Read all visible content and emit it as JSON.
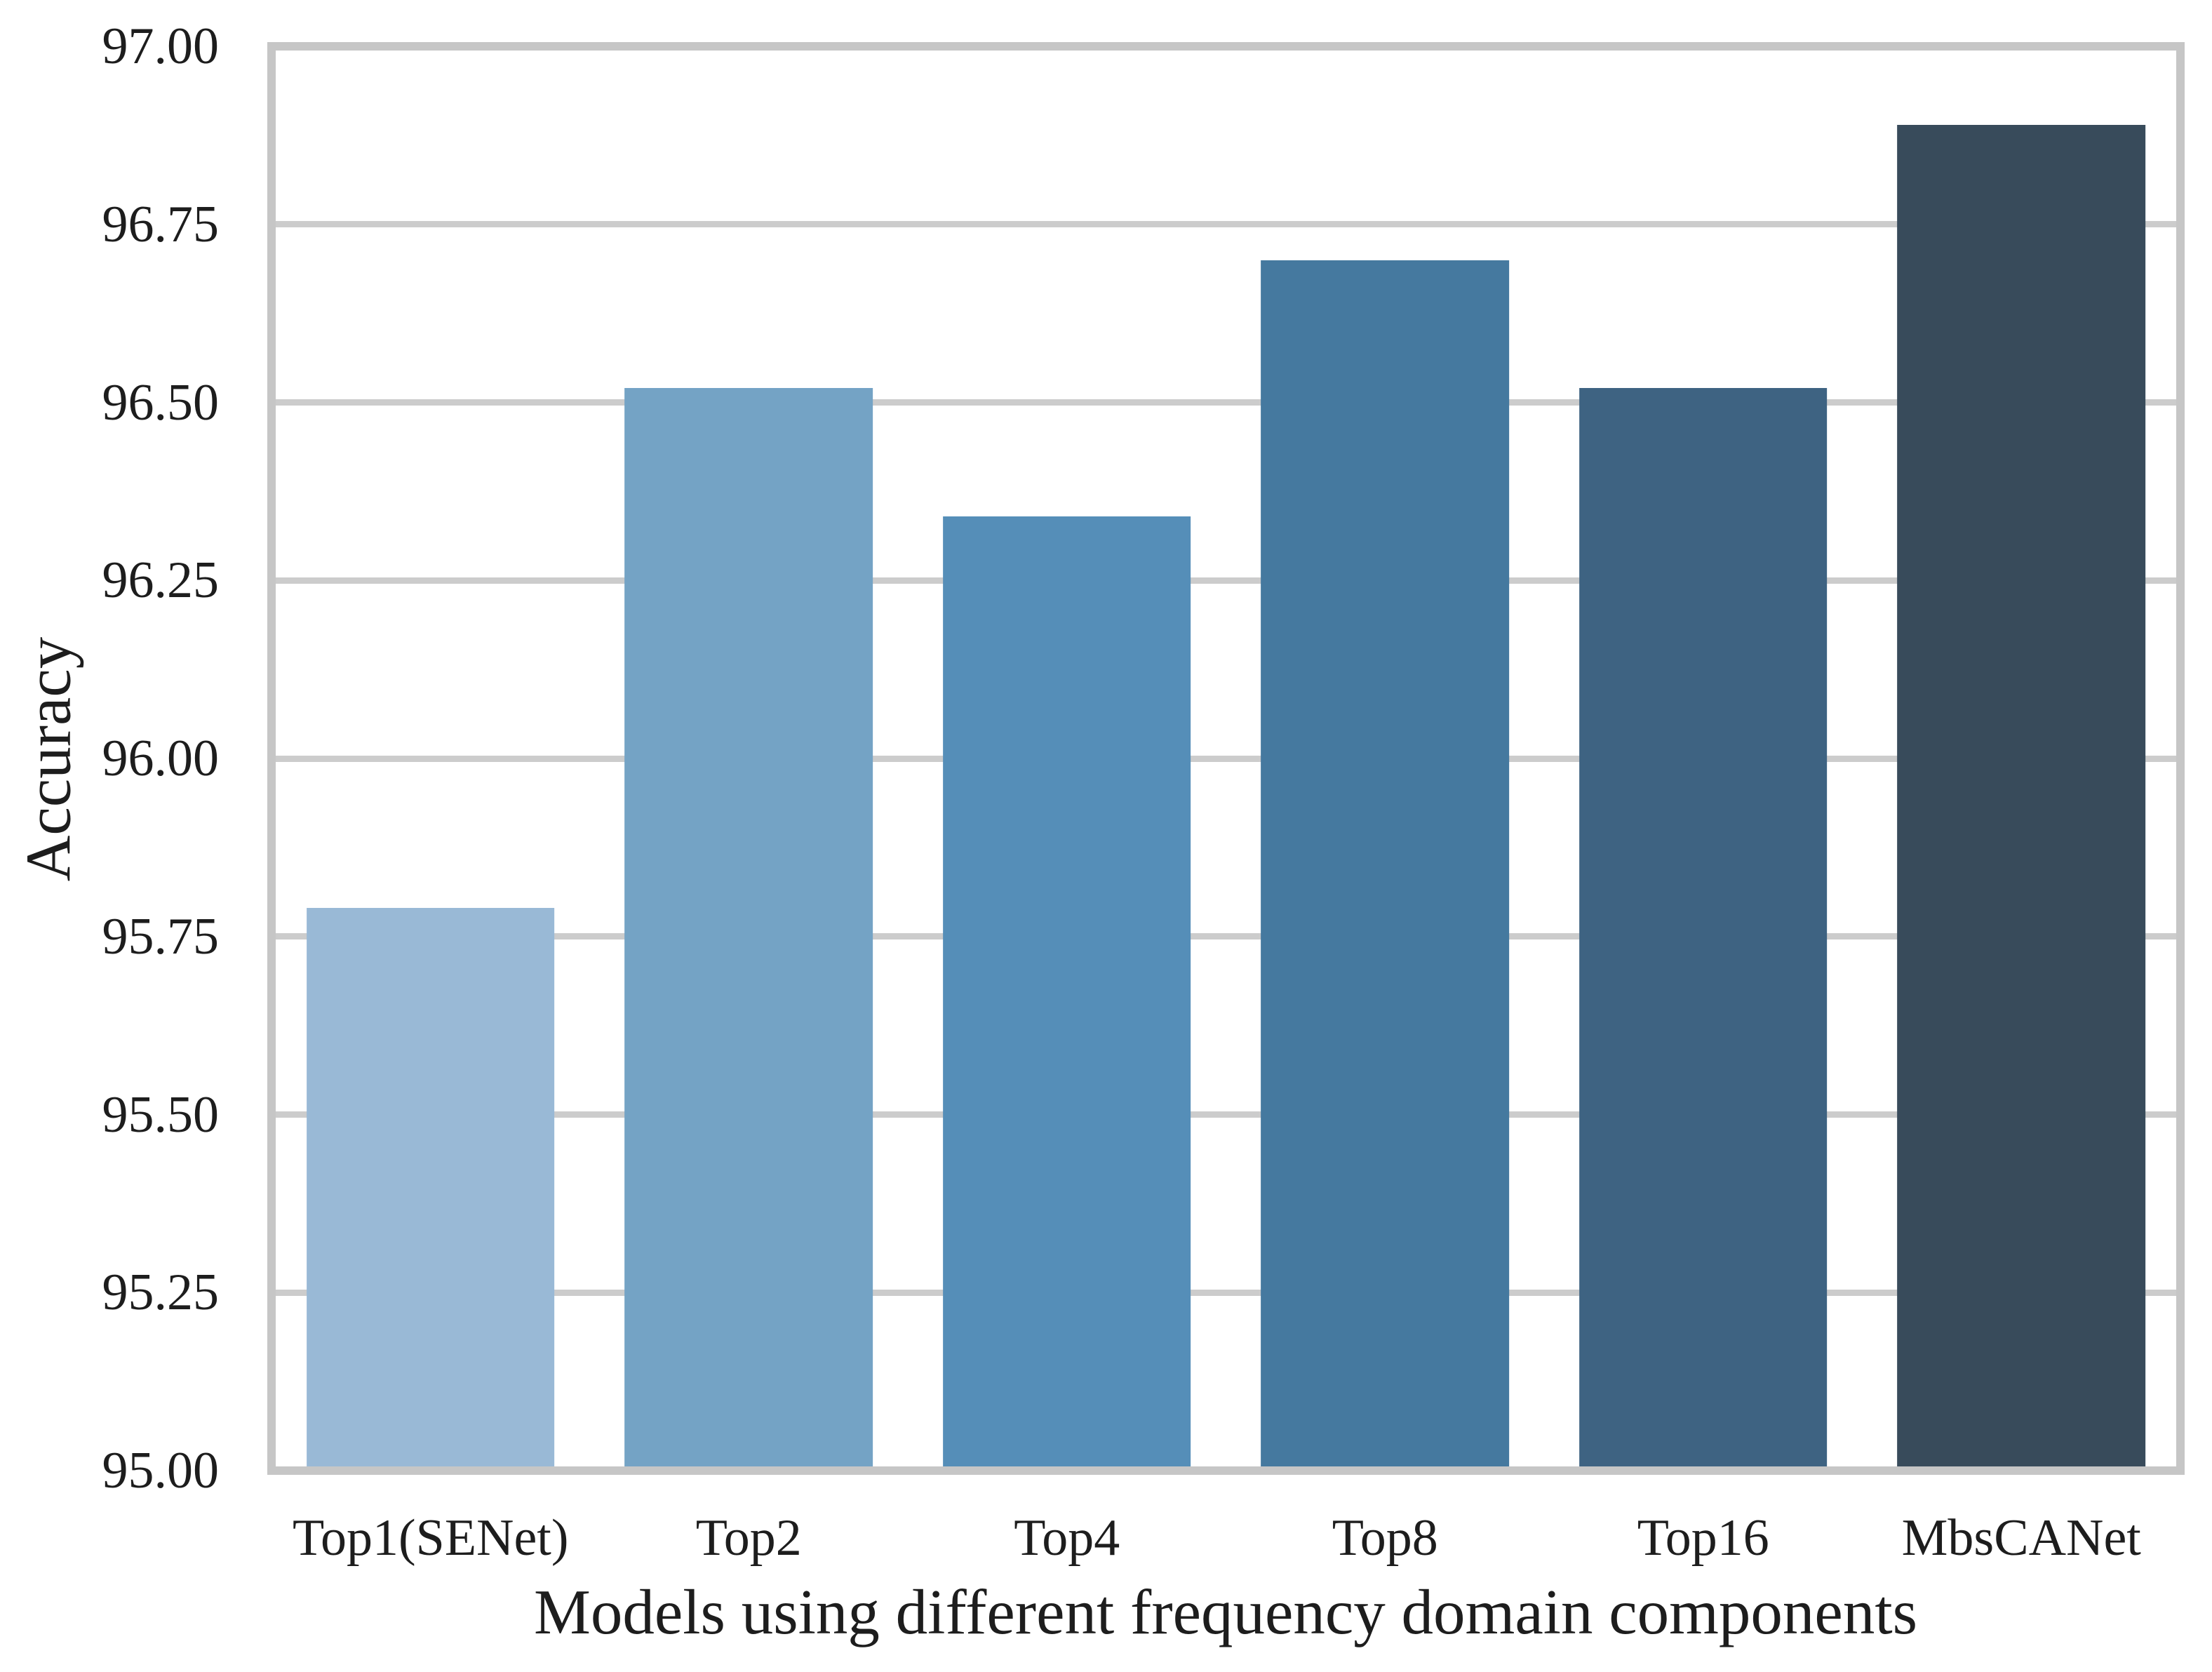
{
  "figure": {
    "background_color": "#ffffff",
    "text_color": "#1d1d1d",
    "spine_color": "#c6c6c6",
    "grid_color": "#cccccc"
  },
  "chart_data": {
    "type": "bar",
    "title": "",
    "xlabel": "Models using different frequency domain components",
    "ylabel": "Accuracy",
    "categories": [
      "Top1(SENet)",
      "Top2",
      "Top4",
      "Top8",
      "Top16",
      "MbsCANet"
    ],
    "values": [
      95.79,
      96.52,
      96.34,
      96.7,
      96.52,
      96.89
    ],
    "bar_colors": [
      "#99b9d6",
      "#74a3c5",
      "#558eb8",
      "#45799f",
      "#3e6382",
      "#384b5b"
    ],
    "ylim": [
      95.0,
      97.0
    ],
    "ytick_step": 0.25,
    "yticks": [
      {
        "label": "97.00",
        "value": 97.0
      },
      {
        "label": "96.75",
        "value": 96.75
      },
      {
        "label": "96.50",
        "value": 96.5
      },
      {
        "label": "96.25",
        "value": 96.25
      },
      {
        "label": "96.00",
        "value": 96.0
      },
      {
        "label": "95.75",
        "value": 95.75
      },
      {
        "label": "95.50",
        "value": 95.5
      },
      {
        "label": "95.25",
        "value": 95.25
      },
      {
        "label": "95.00",
        "value": 95.0
      }
    ],
    "grid": "horizontal",
    "legend_position": "none",
    "bar_width_fraction": 0.78
  }
}
